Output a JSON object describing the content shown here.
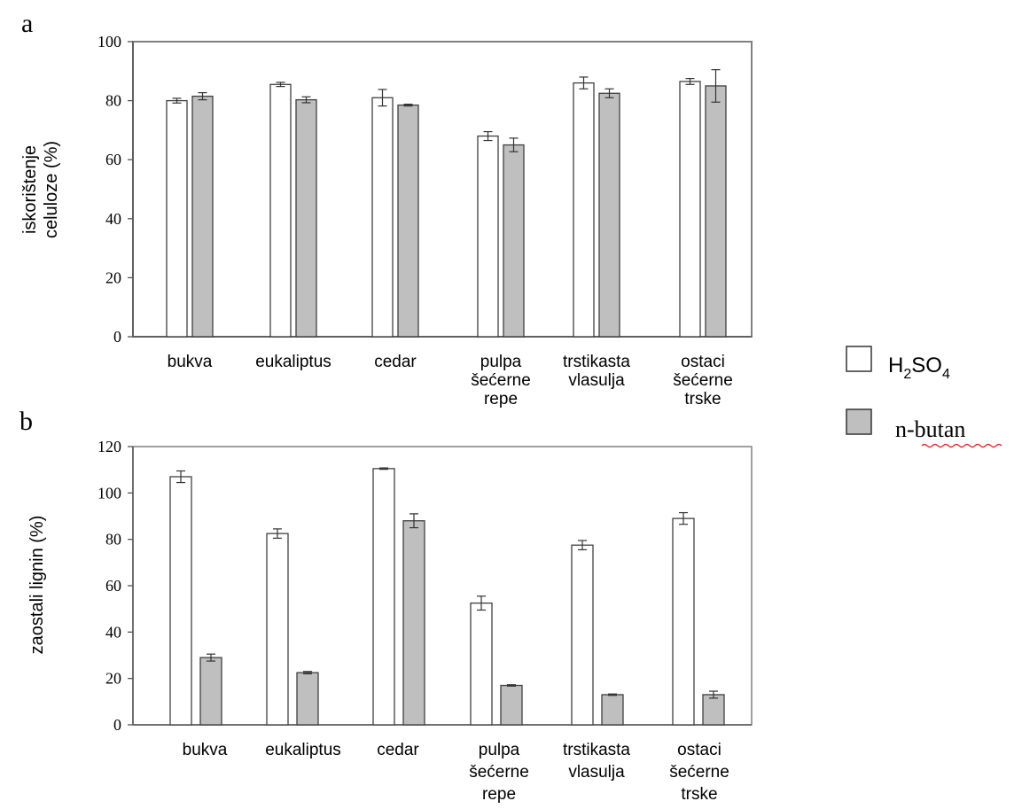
{
  "colors": {
    "h2so4_fill": "#ffffff",
    "nbutan_fill": "#bfbfbf",
    "bar_stroke": "#404040",
    "frame": "#808080",
    "squiggle": "#e03030"
  },
  "legend": {
    "h2so4_label_main": "H",
    "h2so4_sub1": "2",
    "h2so4_label_mid": "SO",
    "h2so4_sub2": "4",
    "nbutan_label": "n-butan"
  },
  "chart_data": [
    {
      "panel": "a",
      "type": "bar",
      "ylabel_line1": "iskorištenje",
      "ylabel_line2": "celuloze (%)",
      "ylim": [
        0,
        100
      ],
      "yticks": [
        "0",
        "20",
        "40",
        "60",
        "80",
        "100"
      ],
      "categories": [
        [
          "bukva"
        ],
        [
          "eukaliptus"
        ],
        [
          "cedar"
        ],
        [
          "pulpa",
          "šećerne",
          "repe"
        ],
        [
          "trstikasta",
          "vlasulja"
        ],
        [
          "ostaci",
          "šećerne",
          "trske"
        ]
      ],
      "series": [
        {
          "name": "H2SO4",
          "values": [
            80,
            85.5,
            81,
            68,
            86,
            86.5
          ],
          "errors": [
            0.8,
            0.7,
            2.8,
            1.5,
            2.0,
            1.0
          ]
        },
        {
          "name": "n-butan",
          "values": [
            81.5,
            80.3,
            78.5,
            65,
            82.5,
            85
          ],
          "errors": [
            1.2,
            1.0,
            0.3,
            2.3,
            1.5,
            5.5
          ]
        }
      ]
    },
    {
      "panel": "b",
      "type": "bar",
      "ylabel_line1": "zaostali lignin (%)",
      "ylim": [
        0,
        120
      ],
      "yticks": [
        "0",
        "20",
        "40",
        "60",
        "80",
        "100",
        "120"
      ],
      "categories": [
        [
          "bukva"
        ],
        [
          "eukaliptus"
        ],
        [
          "cedar"
        ],
        [
          "pulpa",
          "šećerne",
          "repe"
        ],
        [
          "trstikasta",
          "vlasulja"
        ],
        [
          "ostaci",
          "šećerne",
          "trske"
        ]
      ],
      "series": [
        {
          "name": "H2SO4",
          "values": [
            107,
            82.5,
            110.5,
            52.5,
            77.5,
            89
          ],
          "errors": [
            2.5,
            2.0,
            0.3,
            3.0,
            2.0,
            2.5
          ]
        },
        {
          "name": "n-butan",
          "values": [
            29,
            22.5,
            88,
            17,
            13,
            13
          ],
          "errors": [
            1.5,
            0.5,
            3.0,
            0.3,
            0.3,
            1.5
          ]
        }
      ]
    }
  ]
}
